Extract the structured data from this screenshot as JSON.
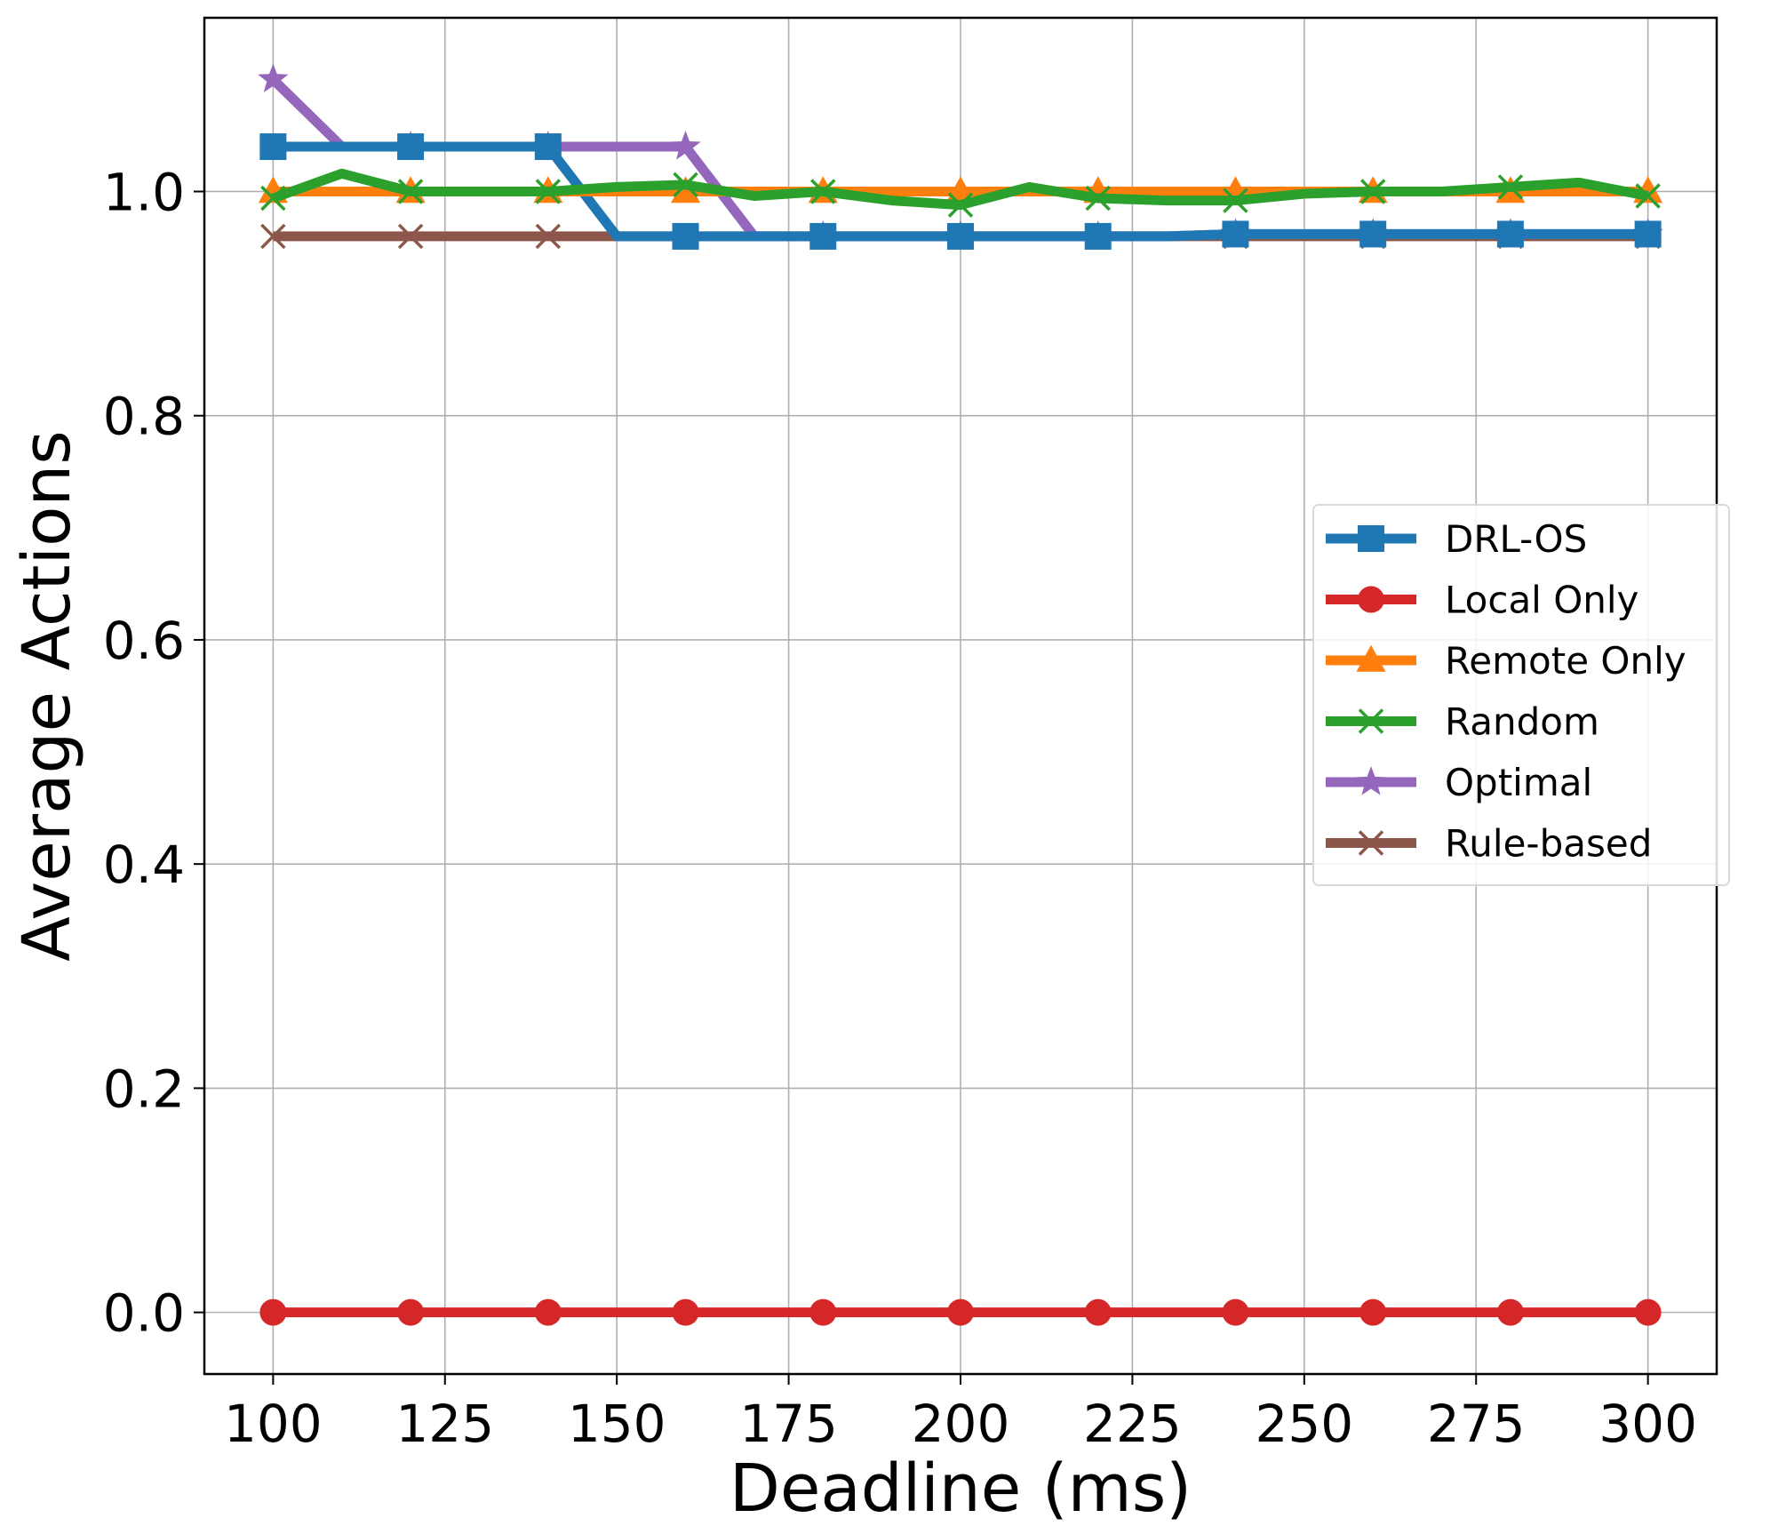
{
  "chart_data": {
    "type": "line",
    "title": "",
    "xlabel": "Deadline (ms)",
    "ylabel": "Average Actions",
    "xlim": [
      90,
      310
    ],
    "ylim": [
      -0.055,
      1.155
    ],
    "xticks": [
      100,
      125,
      150,
      175,
      200,
      225,
      250,
      275,
      300
    ],
    "xtick_labels": [
      "100",
      "125",
      "150",
      "175",
      "200",
      "225",
      "250",
      "275",
      "300"
    ],
    "yticks": [
      0.0,
      0.2,
      0.4,
      0.6,
      0.8,
      1.0
    ],
    "ytick_labels": [
      "0.0",
      "0.2",
      "0.4",
      "0.6",
      "0.8",
      "1.0"
    ],
    "grid": true,
    "legend_position": "center-right",
    "series": [
      {
        "name": "DRL-OS",
        "color": "#1f77b4",
        "marker": "square",
        "x": [
          100,
          110,
          120,
          130,
          140,
          150,
          160,
          170,
          180,
          190,
          200,
          210,
          220,
          230,
          240,
          250,
          260,
          270,
          280,
          290,
          300
        ],
        "y": [
          1.04,
          1.04,
          1.04,
          1.04,
          1.04,
          0.96,
          0.96,
          0.96,
          0.96,
          0.96,
          0.96,
          0.96,
          0.96,
          0.96,
          0.962,
          0.962,
          0.962,
          0.962,
          0.962,
          0.962,
          0.962
        ],
        "marker_every": 2
      },
      {
        "name": "Local Only",
        "color": "#d62728",
        "marker": "circle",
        "x": [
          100,
          110,
          120,
          130,
          140,
          150,
          160,
          170,
          180,
          190,
          200,
          210,
          220,
          230,
          240,
          250,
          260,
          270,
          280,
          290,
          300
        ],
        "y": [
          0,
          0,
          0,
          0,
          0,
          0,
          0,
          0,
          0,
          0,
          0,
          0,
          0,
          0,
          0,
          0,
          0,
          0,
          0,
          0,
          0
        ],
        "marker_every": 2
      },
      {
        "name": "Remote Only",
        "color": "#ff7f0e",
        "marker": "triangle",
        "x": [
          100,
          110,
          120,
          130,
          140,
          150,
          160,
          170,
          180,
          190,
          200,
          210,
          220,
          230,
          240,
          250,
          260,
          270,
          280,
          290,
          300
        ],
        "y": [
          1,
          1,
          1,
          1,
          1,
          1,
          1,
          1,
          1,
          1,
          1,
          1,
          1,
          1,
          1,
          1,
          1,
          1,
          1,
          1,
          1
        ],
        "marker_every": 2
      },
      {
        "name": "Random",
        "color": "#2ca02c",
        "marker": "x",
        "x": [
          100,
          110,
          120,
          130,
          140,
          150,
          160,
          170,
          180,
          190,
          200,
          210,
          220,
          230,
          240,
          250,
          260,
          270,
          280,
          290,
          300
        ],
        "y": [
          0.994,
          1.016,
          1.0,
          1.0,
          1.0,
          1.004,
          1.006,
          0.996,
          1.0,
          0.992,
          0.988,
          1.004,
          0.994,
          0.992,
          0.992,
          0.998,
          1.0,
          1.0,
          1.004,
          1.008,
          0.996
        ],
        "marker_every": 2
      },
      {
        "name": "Optimal",
        "color": "#9467bd",
        "marker": "star",
        "x": [
          100,
          110,
          120,
          130,
          140,
          150,
          160,
          170,
          180,
          190,
          200,
          210,
          220,
          230,
          240,
          250,
          260,
          270,
          280,
          290,
          300
        ],
        "y": [
          1.1,
          1.04,
          1.04,
          1.04,
          1.04,
          1.04,
          1.04,
          0.96,
          0.96,
          0.96,
          0.96,
          0.96,
          0.96,
          0.96,
          0.962,
          0.962,
          0.962,
          0.962,
          0.962,
          0.962,
          0.962
        ],
        "marker_every": 2
      },
      {
        "name": "Rule-based",
        "color": "#8c564b",
        "marker": "x",
        "x": [
          100,
          110,
          120,
          130,
          140,
          150,
          160,
          170,
          180,
          190,
          200,
          210,
          220,
          230,
          240,
          250,
          260,
          270,
          280,
          290,
          300
        ],
        "y": [
          0.96,
          0.96,
          0.96,
          0.96,
          0.96,
          0.96,
          0.96,
          0.96,
          0.96,
          0.96,
          0.96,
          0.96,
          0.96,
          0.96,
          0.96,
          0.96,
          0.96,
          0.96,
          0.96,
          0.96,
          0.96
        ],
        "marker_every": 2
      }
    ]
  }
}
